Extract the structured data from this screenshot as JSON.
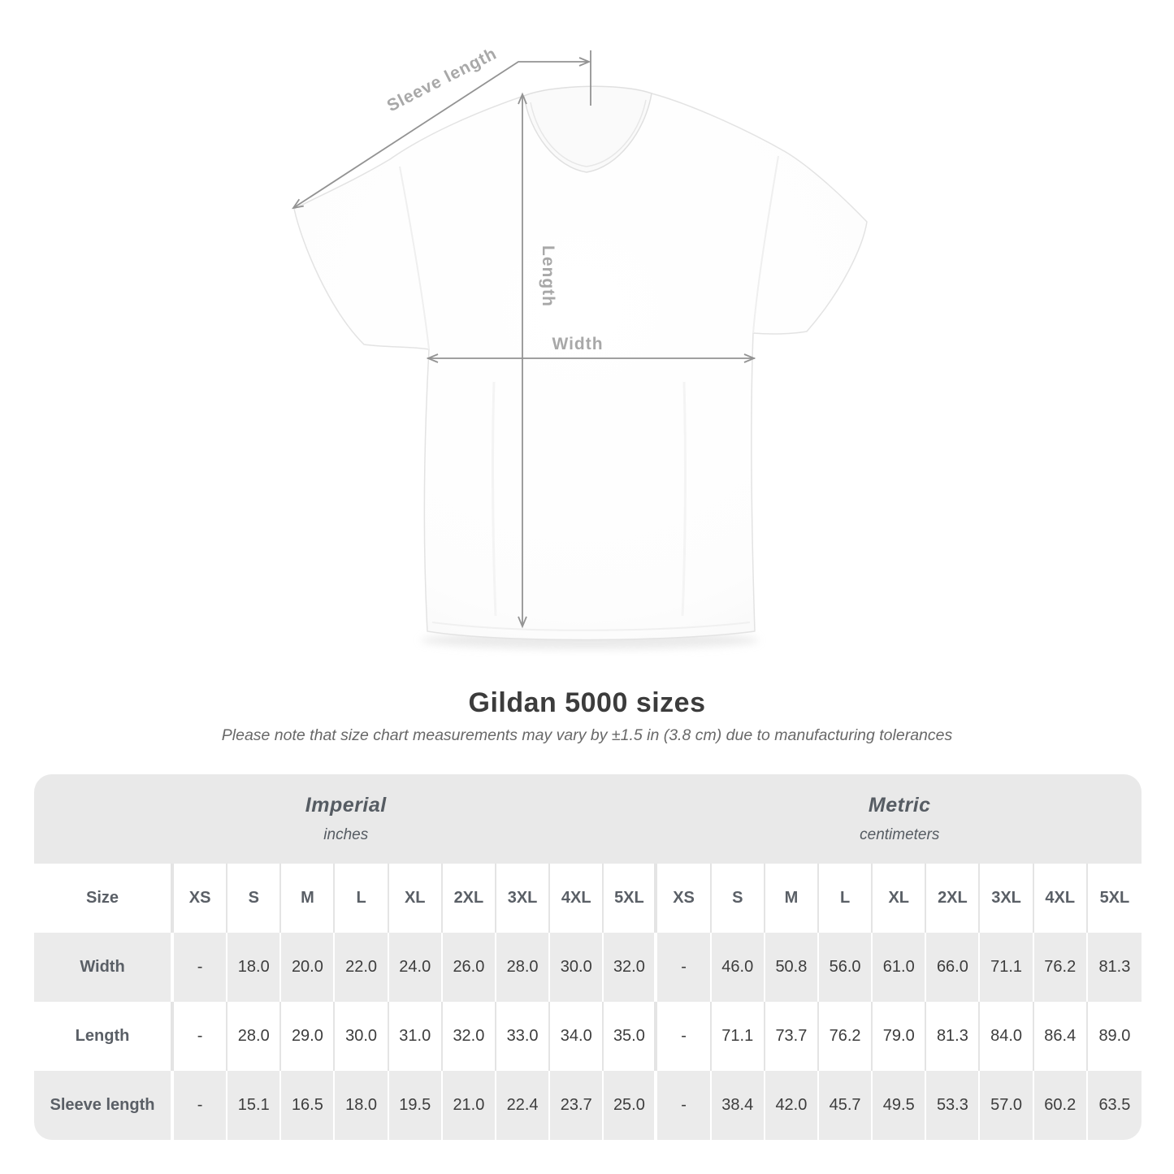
{
  "diagram": {
    "sleeve_length_label": "Sleeve length",
    "length_label": "Length",
    "width_label": "Width"
  },
  "heading": {
    "title": "Gildan 5000 sizes",
    "note": "Please note that size chart measurements may vary by ±1.5 in (3.8 cm) due to manufacturing tolerances"
  },
  "chart_data": {
    "type": "table",
    "title": "Gildan 5000 sizes",
    "size_column_header": "Size",
    "sizes": [
      "XS",
      "S",
      "M",
      "L",
      "XL",
      "2XL",
      "3XL",
      "4XL",
      "5XL"
    ],
    "unit_groups": [
      {
        "label": "Imperial",
        "unit": "inches"
      },
      {
        "label": "Metric",
        "unit": "centimeters"
      }
    ],
    "rows": [
      {
        "label": "Width",
        "imperial": [
          "-",
          "18.0",
          "20.0",
          "22.0",
          "24.0",
          "26.0",
          "28.0",
          "30.0",
          "32.0"
        ],
        "metric": [
          "-",
          "46.0",
          "50.8",
          "56.0",
          "61.0",
          "66.0",
          "71.1",
          "76.2",
          "81.3"
        ]
      },
      {
        "label": "Length",
        "imperial": [
          "-",
          "28.0",
          "29.0",
          "30.0",
          "31.0",
          "32.0",
          "33.0",
          "34.0",
          "35.0"
        ],
        "metric": [
          "-",
          "71.1",
          "73.7",
          "76.2",
          "79.0",
          "81.3",
          "84.0",
          "86.4",
          "89.0"
        ]
      },
      {
        "label": "Sleeve length",
        "imperial": [
          "-",
          "15.1",
          "16.5",
          "18.0",
          "19.5",
          "21.0",
          "22.4",
          "23.7",
          "25.0"
        ],
        "metric": [
          "-",
          "38.4",
          "42.0",
          "45.7",
          "49.5",
          "53.3",
          "57.0",
          "60.2",
          "63.5"
        ]
      }
    ]
  },
  "colors": {
    "band_gray": "#e9e9e9",
    "row_gray": "#ebebeb",
    "value_text": "#3d3d3d",
    "label_text": "#5a5f66",
    "diagram_label": "#a8a8a8",
    "arrow": "#939393"
  }
}
